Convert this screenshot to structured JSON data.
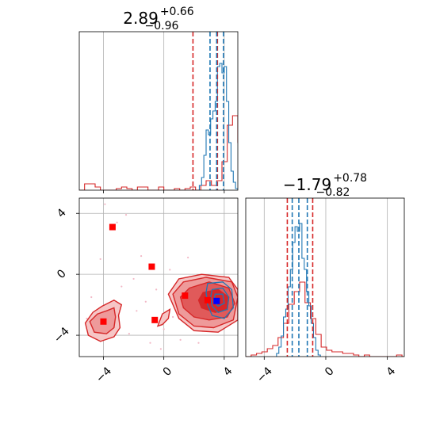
{
  "chart_data": {
    "type": "corner",
    "colors": {
      "series_a": "#d62728",
      "series_b": "#1f77b4",
      "markers": "#ff0000",
      "truth": "#0000ff",
      "grid": "#b0b0b0"
    },
    "ticks": [
      -4,
      0,
      4
    ],
    "tick_labels": [
      "−4",
      "0",
      "4"
    ],
    "panels": [
      {
        "name": "marginal-param-1",
        "title": {
          "value": "2.89",
          "upper": "+0.66",
          "lower": "−0.96"
        },
        "xlim": [
          -5.6,
          4.9
        ],
        "ylim": [
          0,
          1.0
        ],
        "quantiles_a": [
          1.93,
          3.55
        ],
        "quantiles_b": [
          3.06,
          3.95
        ],
        "median_b": 3.5,
        "hist_a": {
          "bin_start": -5.6,
          "bin_width": 0.35,
          "values": [
            0.0,
            0.04,
            0.04,
            0.02,
            0.0,
            0.0,
            0.0,
            0.01,
            0.02,
            0.01,
            0.0,
            0.02,
            0.02,
            0.0,
            0.0,
            0.02,
            0.0,
            0.0,
            0.01,
            0.0,
            0.01,
            0.02,
            0.0,
            0.03,
            0.06,
            0.03,
            0.06,
            0.18,
            0.41,
            0.47,
            0.3,
            0.16,
            0.04,
            0.02,
            0.02,
            0.01
          ]
        },
        "hist_b": {
          "bin_start": 2.35,
          "bin_width": 0.15,
          "values": [
            0.03,
            0.08,
            0.22,
            0.38,
            0.35,
            0.45,
            0.5,
            0.56,
            0.78,
            0.8,
            0.74,
            0.78,
            0.56,
            0.3,
            0.12,
            0.05,
            0.01
          ]
        }
      },
      {
        "name": "marginal-param-2",
        "title": {
          "value": "−1.79",
          "upper": "+0.78",
          "lower": "−0.82"
        },
        "xlim": [
          -5.2,
          5.1
        ],
        "ylim": [
          0,
          1.0
        ],
        "quantiles_a": [
          -2.5,
          -0.85
        ],
        "quantiles_b": [
          -2.18,
          -1.2
        ],
        "median_b": -1.75,
        "hist_a": {
          "bin_start": -5.2,
          "bin_width": 0.35,
          "values": [
            0.0,
            0.01,
            0.02,
            0.03,
            0.05,
            0.07,
            0.12,
            0.21,
            0.33,
            0.41,
            0.47,
            0.34,
            0.24,
            0.14,
            0.06,
            0.04,
            0.03,
            0.03,
            0.02,
            0.02,
            0.01,
            0.0,
            0.01,
            0.0,
            0.0,
            0.0,
            0.0,
            0.0,
            0.01,
            0.0
          ]
        },
        "hist_b": {
          "bin_start": -3.2,
          "bin_width": 0.15,
          "values": [
            0.02,
            0.06,
            0.13,
            0.25,
            0.3,
            0.44,
            0.55,
            0.72,
            0.82,
            0.79,
            0.84,
            0.62,
            0.55,
            0.41,
            0.32,
            0.21,
            0.12,
            0.04,
            0.01
          ]
        }
      }
    ],
    "joint": {
      "name": "joint-param-1-vs-param-2",
      "xlim": [
        -5.6,
        4.9
      ],
      "ylim": [
        -5.4,
        5.0
      ],
      "markers": [
        {
          "x": -3.4,
          "y": 3.1
        },
        {
          "x": -0.8,
          "y": 0.5
        },
        {
          "x": 1.4,
          "y": -1.4
        },
        {
          "x": -4.0,
          "y": -3.1
        },
        {
          "x": -0.6,
          "y": -3.0
        },
        {
          "x": 2.9,
          "y": -1.7
        }
      ],
      "truth": {
        "x": 3.5,
        "y": -1.75
      },
      "contours_a": [
        [
          [
            1.0,
            -0.3
          ],
          [
            2.5,
            0.0
          ],
          [
            4.3,
            -0.2
          ],
          [
            4.9,
            -1.0
          ],
          [
            4.9,
            -3.0
          ],
          [
            3.6,
            -3.8
          ],
          [
            2.0,
            -3.7
          ],
          [
            1.0,
            -2.9
          ],
          [
            0.3,
            -1.3
          ]
        ],
        [
          [
            1.3,
            -0.5
          ],
          [
            2.8,
            -0.2
          ],
          [
            4.5,
            -0.5
          ],
          [
            4.9,
            -1.5
          ],
          [
            4.6,
            -3.0
          ],
          [
            3.3,
            -3.5
          ],
          [
            2.0,
            -3.4
          ],
          [
            1.0,
            -2.6
          ],
          [
            0.6,
            -1.3
          ]
        ],
        [
          [
            1.7,
            -0.9
          ],
          [
            3.0,
            -0.5
          ],
          [
            4.3,
            -0.9
          ],
          [
            4.7,
            -1.9
          ],
          [
            4.2,
            -2.8
          ],
          [
            3.0,
            -3.0
          ],
          [
            2.0,
            -2.8
          ],
          [
            1.3,
            -2.2
          ],
          [
            1.1,
            -1.5
          ]
        ],
        [
          [
            2.6,
            -1.2
          ],
          [
            3.6,
            -1.0
          ],
          [
            4.3,
            -1.5
          ],
          [
            4.2,
            -2.3
          ],
          [
            3.4,
            -2.5
          ],
          [
            2.5,
            -2.2
          ],
          [
            2.3,
            -1.7
          ]
        ]
      ],
      "contours_a2": [
        [
          [
            -5.2,
            -3.2
          ],
          [
            -4.7,
            -2.5
          ],
          [
            -4.1,
            -2.1
          ],
          [
            -3.3,
            -1.7
          ],
          [
            -2.8,
            -2.0
          ],
          [
            -3.0,
            -2.7
          ],
          [
            -2.9,
            -3.5
          ],
          [
            -3.3,
            -4.1
          ],
          [
            -4.2,
            -4.4
          ],
          [
            -5.0,
            -4.0
          ]
        ],
        [
          [
            -4.9,
            -3.1
          ],
          [
            -4.4,
            -2.6
          ],
          [
            -3.8,
            -2.4
          ],
          [
            -3.3,
            -2.2
          ],
          [
            -3.2,
            -2.8
          ],
          [
            -3.3,
            -3.5
          ],
          [
            -3.8,
            -3.9
          ],
          [
            -4.6,
            -3.8
          ]
        ]
      ],
      "contours_a3": [
        [
          [
            -0.4,
            -3.4
          ],
          [
            -0.1,
            -2.6
          ],
          [
            0.4,
            -2.3
          ],
          [
            0.3,
            -2.9
          ],
          [
            -0.1,
            -3.3
          ]
        ]
      ],
      "contours_b": [
        [
          [
            2.9,
            -0.6
          ],
          [
            3.9,
            -0.5
          ],
          [
            4.5,
            -1.0
          ],
          [
            4.6,
            -2.2
          ],
          [
            4.0,
            -2.9
          ],
          [
            3.2,
            -2.7
          ],
          [
            2.9,
            -2.0
          ],
          [
            2.8,
            -1.2
          ]
        ],
        [
          [
            3.2,
            -1.0
          ],
          [
            3.9,
            -0.9
          ],
          [
            4.3,
            -1.5
          ],
          [
            4.2,
            -2.3
          ],
          [
            3.6,
            -2.5
          ],
          [
            3.2,
            -2.1
          ],
          [
            3.1,
            -1.5
          ]
        ],
        [
          [
            3.4,
            -1.3
          ],
          [
            3.9,
            -1.3
          ],
          [
            4.0,
            -1.9
          ],
          [
            3.6,
            -2.1
          ],
          [
            3.3,
            -1.8
          ]
        ]
      ],
      "scatter": [
        {
          "x": -5.1,
          "y": -2.9
        },
        {
          "x": -4.4,
          "y": -3.6
        },
        {
          "x": -3.7,
          "y": -2.6
        },
        {
          "x": -3.1,
          "y": 3.4
        },
        {
          "x": -2.5,
          "y": 3.9
        },
        {
          "x": -2.0,
          "y": -0.3
        },
        {
          "x": -1.5,
          "y": 1.2
        },
        {
          "x": -1.2,
          "y": -1.8
        },
        {
          "x": -0.9,
          "y": -4.5
        },
        {
          "x": -0.5,
          "y": -1.0
        },
        {
          "x": 0.0,
          "y": -3.6
        },
        {
          "x": 0.4,
          "y": 0.3
        },
        {
          "x": 0.8,
          "y": -1.6
        },
        {
          "x": 1.1,
          "y": -4.3
        },
        {
          "x": -1.8,
          "y": -2.4
        },
        {
          "x": -2.8,
          "y": -0.8
        },
        {
          "x": 1.6,
          "y": 1.1
        },
        {
          "x": -4.2,
          "y": 1.0
        },
        {
          "x": -3.9,
          "y": 4.6
        },
        {
          "x": 0.6,
          "y": -2.8
        },
        {
          "x": -0.2,
          "y": -4.9
        },
        {
          "x": 2.3,
          "y": -4.5
        },
        {
          "x": -2.3,
          "y": -3.9
        },
        {
          "x": -4.8,
          "y": -1.5
        }
      ]
    }
  }
}
